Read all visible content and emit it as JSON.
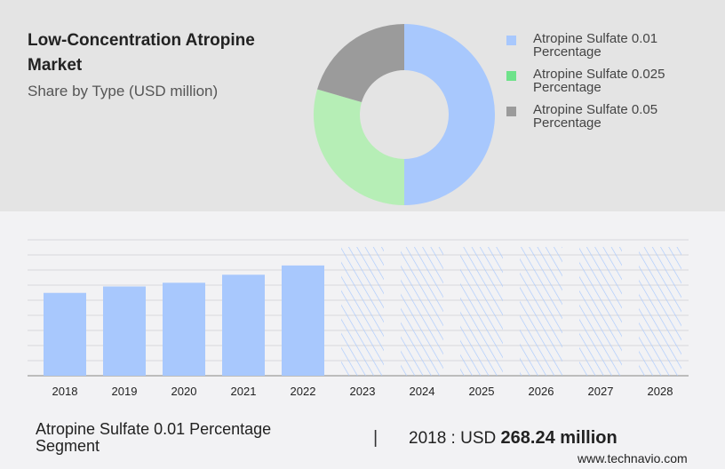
{
  "header": {
    "title": "Low-Concentration Atropine Market",
    "subtitle": "Share by Type (USD million)"
  },
  "chart_data": [
    {
      "type": "pie",
      "donut": true,
      "segments": [
        {
          "name": "Atropine Sulfate 0.01 Percentage",
          "value": 50,
          "color": "#a8c8fd"
        },
        {
          "name": "Atropine Sulfate 0.025 Percentage",
          "value": 29.5,
          "color": "#b6eeb6"
        },
        {
          "name": "Atropine Sulfate 0.05 Percentage",
          "value": 20.5,
          "color": "#9b9b9b"
        }
      ],
      "legend_position": "right",
      "legend_swatch_colors": [
        "#a8c8fd",
        "#6ee28a",
        "#9b9b9b"
      ]
    },
    {
      "type": "bar",
      "categories": [
        "2018",
        "2019",
        "2020",
        "2021",
        "2022",
        "2023",
        "2024",
        "2025",
        "2026",
        "2027",
        "2028"
      ],
      "values": [
        268.24,
        289,
        301,
        327,
        357,
        null,
        null,
        null,
        null,
        null,
        null
      ],
      "forecast": [
        false,
        false,
        false,
        false,
        false,
        true,
        true,
        true,
        true,
        true,
        true
      ],
      "ylim": [
        0,
        440
      ],
      "grid": true,
      "color": "#a8c8fd"
    }
  ],
  "footer": {
    "segment": "Atropine Sulfate 0.01 Percentage Segment",
    "separator": "|",
    "year_label": "2018 : USD",
    "value": "268.24 million",
    "site": "www.technavio.com"
  }
}
